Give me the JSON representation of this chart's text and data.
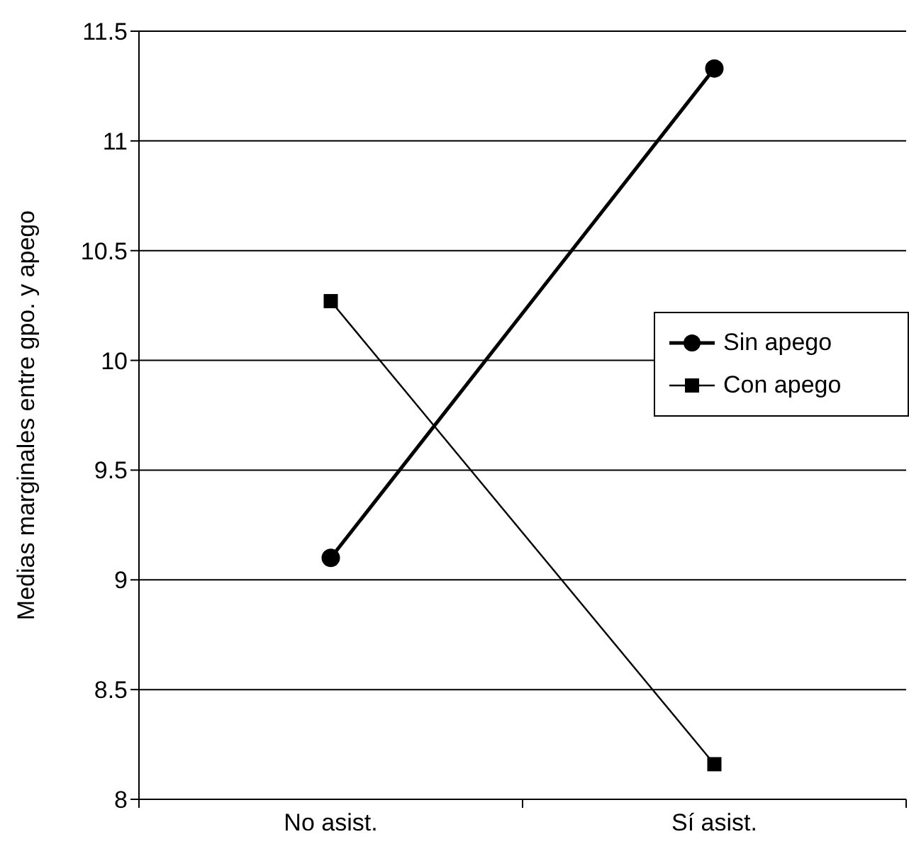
{
  "chart_data": {
    "type": "line",
    "ylabel": "Medias marginales entre gpo. y apego",
    "categories": [
      "No asist.",
      "Sí asist."
    ],
    "series": [
      {
        "name": "Sin apego",
        "color": "#000000",
        "values": [
          9.1,
          11.33
        ],
        "marker": "circle"
      },
      {
        "name": "Con apego",
        "color": "#000000",
        "values": [
          10.27,
          8.16
        ],
        "marker": "square"
      }
    ],
    "ylim": [
      8,
      11.5
    ],
    "yticks": [
      8,
      8.5,
      9,
      9.5,
      10,
      10.5,
      11,
      11.5
    ],
    "grid": "y",
    "legend": "right",
    "line_style": "solid"
  }
}
